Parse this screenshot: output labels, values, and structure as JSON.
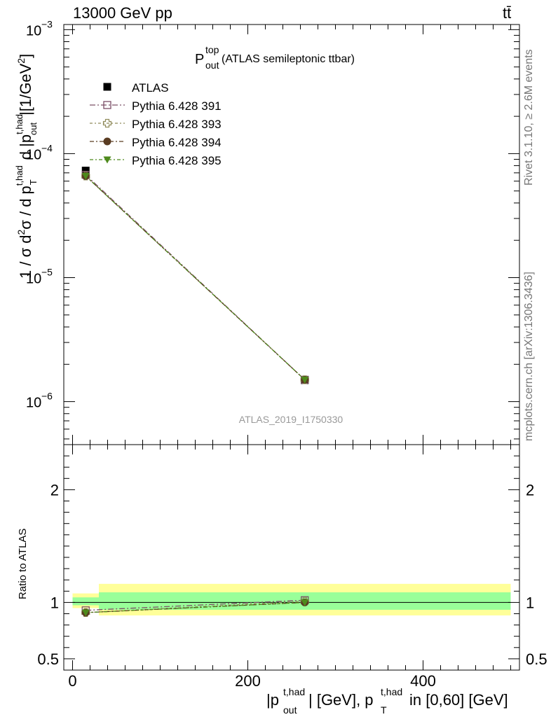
{
  "header": {
    "energy_label": "13000 GeV pp",
    "process_label": "tt̄"
  },
  "side_labels": {
    "rivet": "Rivet 3.1.10, ≥ 2.6M events",
    "mcplots": "mcplots.cern.ch [arXiv:1306.3436]"
  },
  "watermark": "ATLAS_2019_I1750330",
  "chart_data": [
    {
      "type": "line",
      "panel": "main",
      "title": "P_out^top (ATLAS semileptonic ttbar)",
      "title_main": "P",
      "title_sup": "top",
      "title_sub": "out",
      "title_rest": " (ATLAS semileptonic ttbar)",
      "ylabel": "1 / σ d²σ / d p_T^t,had d |p_out^t,had| [1/GeV²]",
      "yscale": "log",
      "ylim": [
        4.5e-07,
        0.0011
      ],
      "xlim": [
        -10,
        510
      ],
      "y_ticks": [
        {
          "value": 1e-06,
          "label": "10",
          "exp": "−6"
        },
        {
          "value": 1e-05,
          "label": "10",
          "exp": "−5"
        },
        {
          "value": 0.0001,
          "label": "10",
          "exp": "−4"
        },
        {
          "value": 0.001,
          "label": "10",
          "exp": "−3"
        }
      ],
      "legend_position": "top-left",
      "legend": [
        {
          "name": "ATLAS",
          "marker": "filled-square",
          "color": "#000000"
        },
        {
          "name": "Pythia 6.428 391",
          "marker": "open-square",
          "color": "#7b4f66"
        },
        {
          "name": "Pythia 6.428 393",
          "marker": "open-cross",
          "color": "#8f8a5a"
        },
        {
          "name": "Pythia 6.428 394",
          "marker": "filled-circle",
          "color": "#5a3c22"
        },
        {
          "name": "Pythia 6.428 395",
          "marker": "filled-triangle-down",
          "color": "#4e8a1c"
        }
      ],
      "data": {
        "ATLAS": {
          "x": [
            15,
            265
          ],
          "y": [
            7.3e-05,
            1.49e-06
          ],
          "bins": [
            [
              0,
              30
            ],
            [
              30,
              500
            ]
          ]
        },
        "Pythia 6.428 391": {
          "x": [
            15,
            265
          ],
          "y": [
            6.75e-05,
            1.5e-06
          ]
        },
        "Pythia 6.428 393": {
          "x": [
            15,
            265
          ],
          "y": [
            6.6e-05,
            1.5e-06
          ]
        },
        "Pythia 6.428 394": {
          "x": [
            15,
            265
          ],
          "y": [
            6.6e-05,
            1.5e-06
          ]
        },
        "Pythia 6.428 395": {
          "x": [
            15,
            265
          ],
          "y": [
            6.6e-05,
            1.5e-06
          ]
        }
      }
    },
    {
      "type": "line",
      "panel": "ratio",
      "ylabel": "Ratio to ATLAS",
      "xlabel": "|p_out^t,had| [GeV], p_T^t,had in [0,60] [GeV]",
      "ylim": [
        0.4,
        2.4
      ],
      "xlim": [
        -10,
        510
      ],
      "x_ticks": [
        0,
        200,
        400
      ],
      "y_ticks": [
        0.5,
        1,
        2
      ],
      "bands": [
        {
          "x0": 0,
          "x1": 30,
          "stat_sys": [
            0.95,
            1.08
          ],
          "stat": [
            0.975,
            1.045
          ]
        },
        {
          "x0": 30,
          "x1": 500,
          "stat_sys": [
            0.885,
            1.165
          ],
          "stat": [
            0.935,
            1.09
          ]
        }
      ],
      "series": [
        {
          "name": "Pythia 6.428 391",
          "x": [
            15,
            265
          ],
          "values": [
            0.93,
            1.02
          ]
        },
        {
          "name": "Pythia 6.428 393",
          "x": [
            15,
            265
          ],
          "values": [
            0.91,
            1.01
          ]
        },
        {
          "name": "Pythia 6.428 394",
          "x": [
            15,
            265
          ],
          "values": [
            0.91,
            1.0
          ]
        },
        {
          "name": "Pythia 6.428 395",
          "x": [
            15,
            265
          ],
          "values": [
            0.91,
            1.0
          ]
        }
      ]
    }
  ]
}
